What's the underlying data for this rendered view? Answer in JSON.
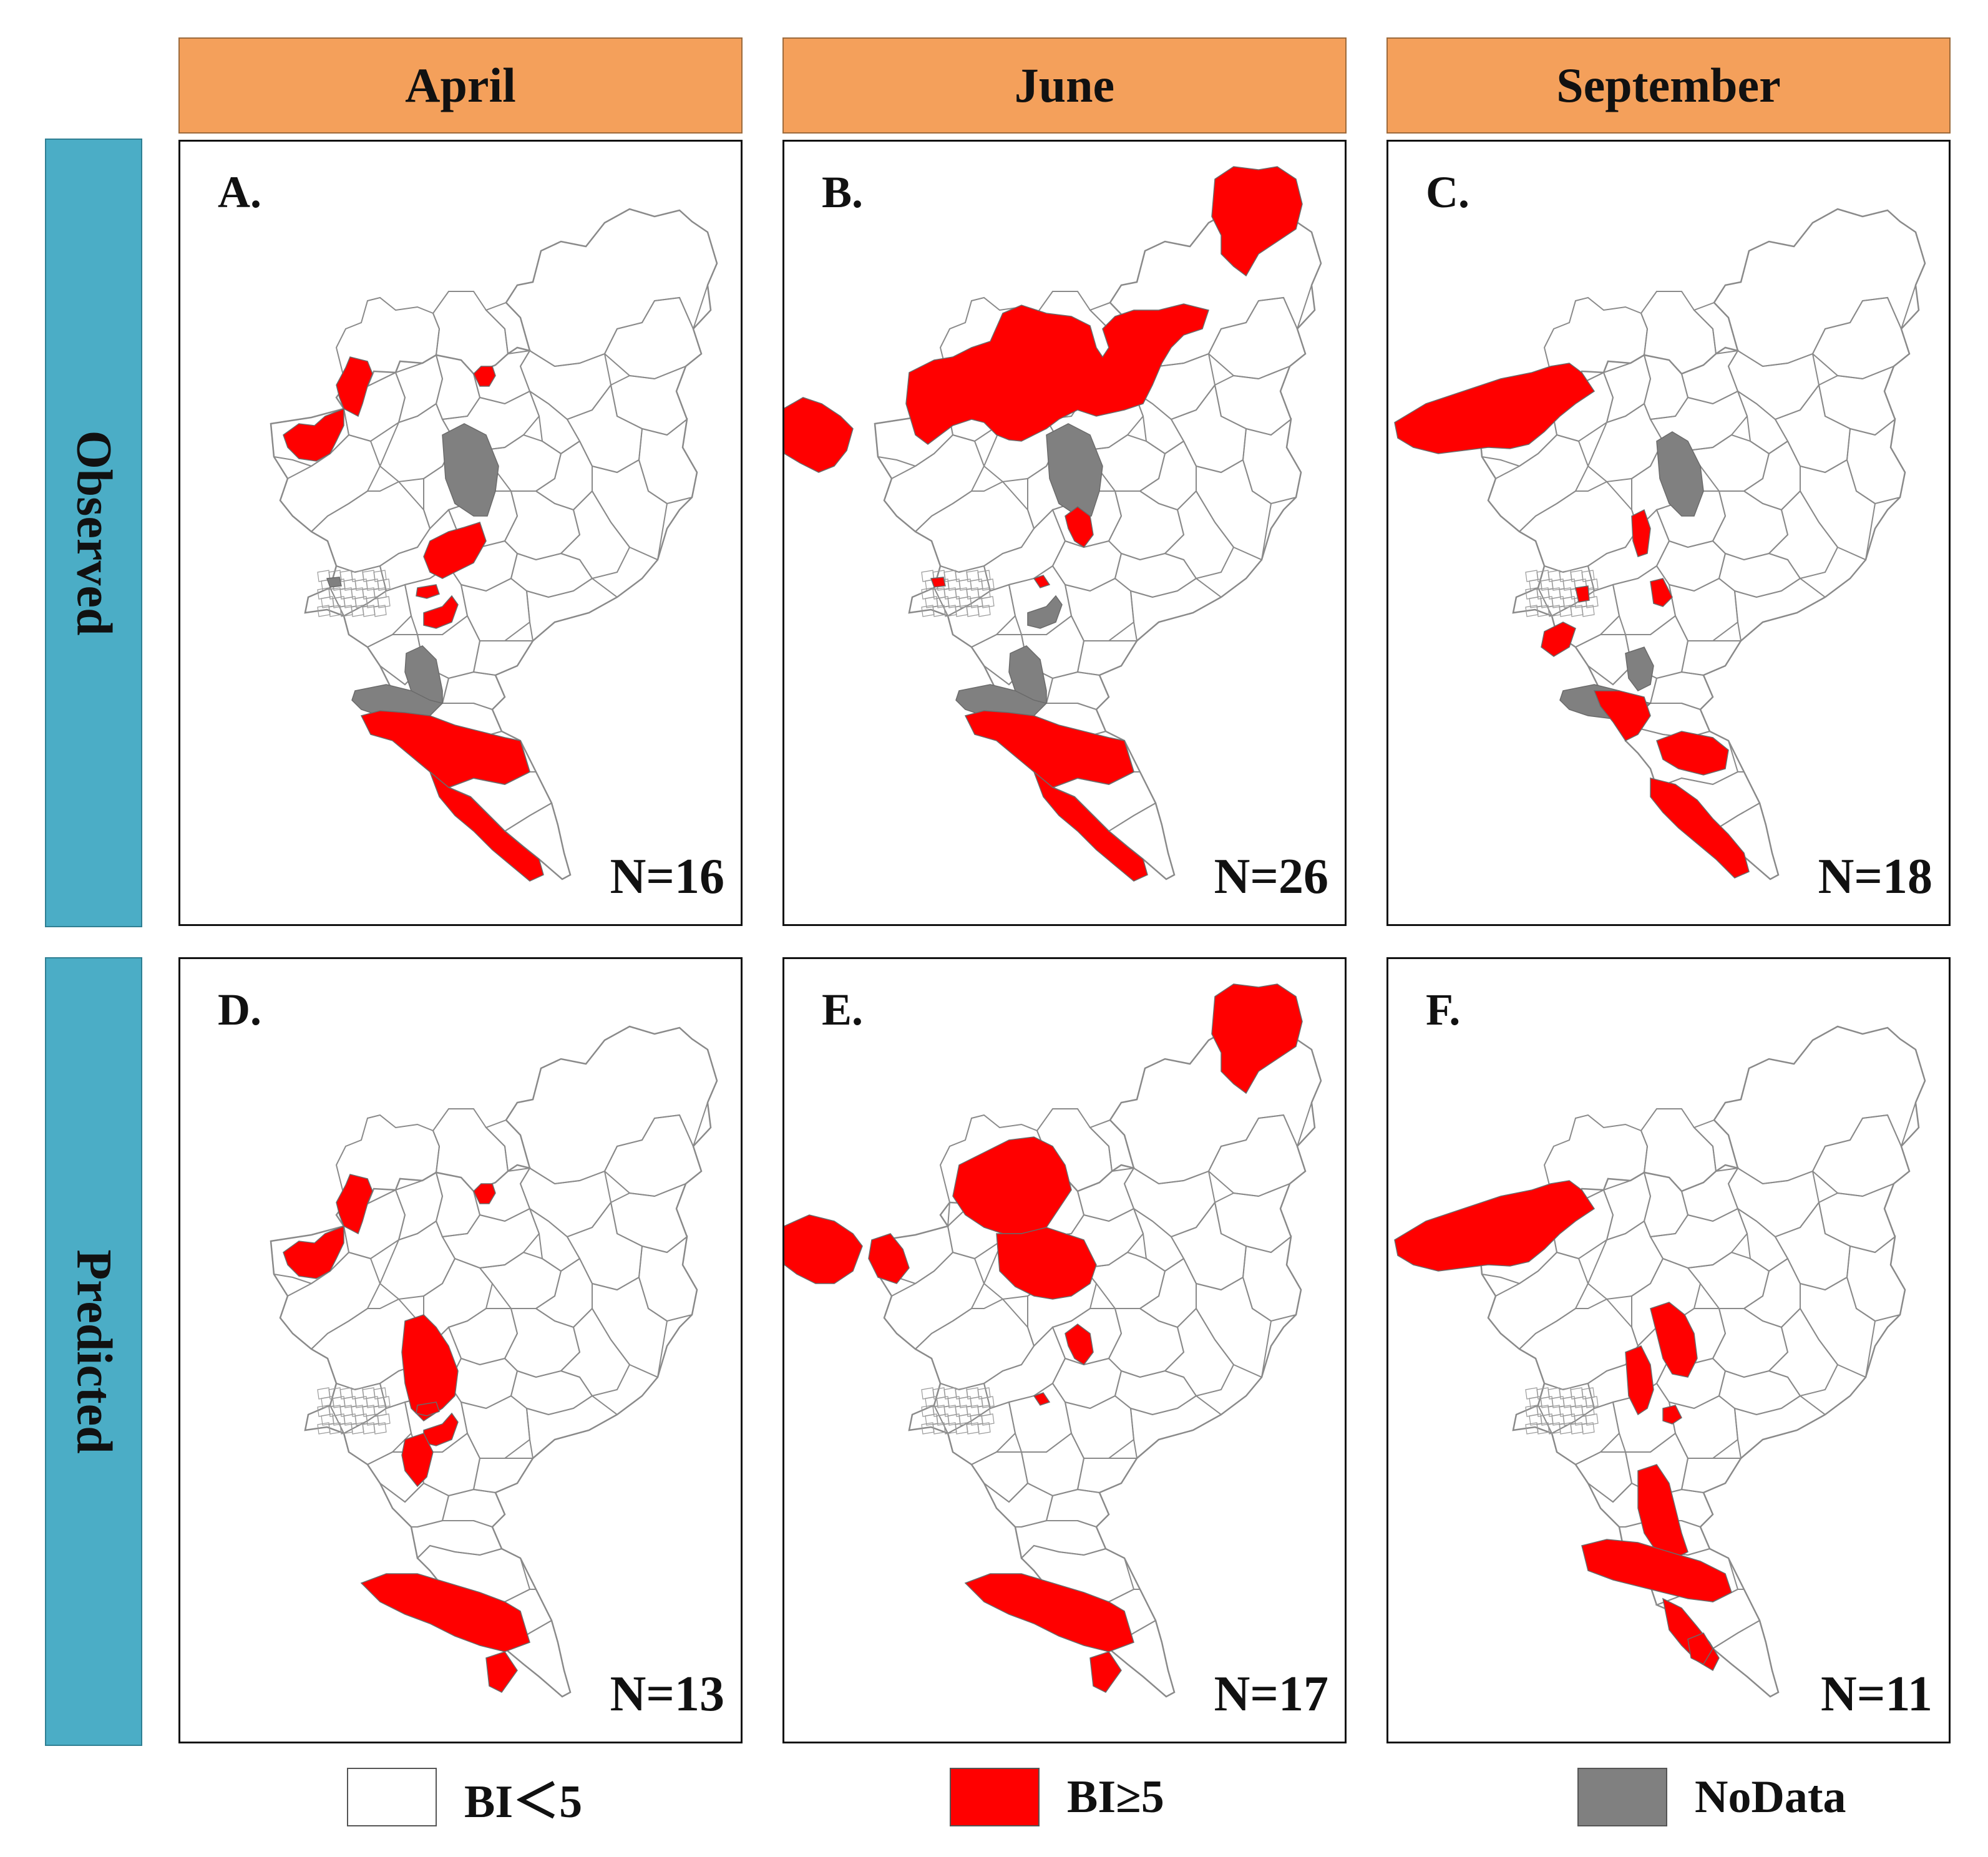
{
  "columns": [
    "April",
    "June",
    "September"
  ],
  "rows": [
    "Observed",
    "Predicted"
  ],
  "colors": {
    "header_column": "#F4A05B",
    "header_row": "#4BADC6",
    "high": "#FF0000",
    "low": "#FFFFFF",
    "nodata": "#808080"
  },
  "panels": [
    {
      "label": "A.",
      "count": "N=16",
      "month": "April",
      "type": "Observed"
    },
    {
      "label": "B.",
      "count": "N=26",
      "month": "June",
      "type": "Observed"
    },
    {
      "label": "C.",
      "count": "N=18",
      "month": "September",
      "type": "Observed"
    },
    {
      "label": "D.",
      "count": "N=13",
      "month": "April",
      "type": "Predicted"
    },
    {
      "label": "E.",
      "count": "N=17",
      "month": "June",
      "type": "Predicted"
    },
    {
      "label": "F.",
      "count": "N=11",
      "month": "September",
      "type": "Predicted"
    }
  ],
  "legend": [
    {
      "label": "BI＜5",
      "class": "low"
    },
    {
      "label": "BI≥5",
      "class": "high"
    },
    {
      "label": "NoData",
      "class": "nodata"
    }
  ]
}
